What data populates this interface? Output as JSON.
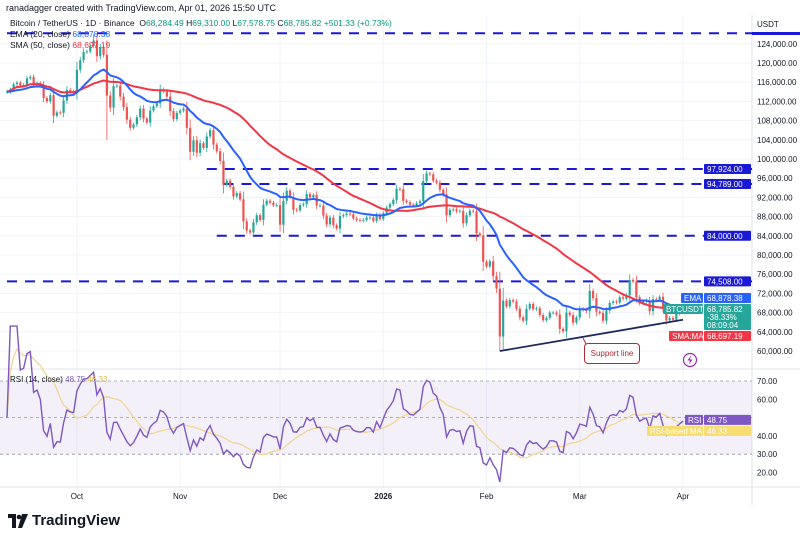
{
  "header": {
    "creator": "ranadagger created with TradingView.com, Apr 01, 2026 15:50 UTC",
    "symbol": "Bitcoin / TetherUS · 1D · Binance",
    "open_label": "O",
    "open": "68,284.49",
    "high_label": "H",
    "high": "69,310.00",
    "low_label": "L",
    "low": "67,578.75",
    "close_label": "C",
    "close": "68,785.82",
    "change": "+501.33 (+0.73%)",
    "ema_label": "EMA (20, close)",
    "ema_value": "68,878.38",
    "sma_label": "SMA (50, close)",
    "sma_value": "68,697.19"
  },
  "price_axis": {
    "currency": "USDT",
    "ticks": [
      124000,
      120000,
      116000,
      112000,
      108000,
      104000,
      100000,
      96000,
      92000,
      88000,
      84000,
      80000,
      76000,
      72000,
      68000,
      64000,
      60000
    ],
    "tick_labels": [
      "124,000.00",
      "120,000.00",
      "116,000.00",
      "112,000.00",
      "108,000.00",
      "104,000.00",
      "100,000.00",
      "96,000.00",
      "92,000.00",
      "88,000.00",
      "84,000.00",
      "80,000.00",
      "76,000.00",
      "72,000.00",
      "68,000.00",
      "64,000.00",
      "60,000.00"
    ]
  },
  "levels": [
    {
      "price": 126200,
      "label": "",
      "start_date_index": 0
    },
    {
      "price": 97924,
      "label": "97,924.00",
      "start_date_index": 60
    },
    {
      "price": 94789,
      "label": "94,789.00",
      "start_date_index": 65
    },
    {
      "price": 84000,
      "label": "84,000.00",
      "start_date_index": 63
    },
    {
      "price": 74508,
      "label": "74,508.00",
      "start_date_index": 0
    }
  ],
  "price_tags": {
    "ema": {
      "name": "EMA",
      "value": "68,878.38"
    },
    "last": {
      "name": "BTCUSDT",
      "value": "68,785.82",
      "change": "-38.33%",
      "countdown": "08:09:04"
    },
    "sma": {
      "name": "SMA:MA",
      "value": "68,697.19"
    }
  },
  "annotation": {
    "text": "Support line",
    "line_start": {
      "date_index": 148,
      "price": 60000
    },
    "line_end": {
      "date_index": 203,
      "price": 66500
    }
  },
  "rsi": {
    "legend": "RSI (14, close)",
    "value": "48.75",
    "ma_value": "46.33",
    "tag_rsi": "RSI",
    "tag_ma": "RSI-based MA",
    "ticks": [
      70,
      60,
      40,
      30,
      20
    ],
    "tick_labels": [
      "70.00",
      "60.00",
      "40.00",
      "30.00",
      "20.00"
    ],
    "upper_band": 70,
    "lower_band": 30
  },
  "time_axis": {
    "labels": [
      {
        "text": "Oct",
        "date_index": 21
      },
      {
        "text": "Nov",
        "date_index": 52
      },
      {
        "text": "Dec",
        "date_index": 82
      },
      {
        "text": "2026",
        "date_index": 113
      },
      {
        "text": "Feb",
        "date_index": 144
      },
      {
        "text": "Mar",
        "date_index": 172
      },
      {
        "text": "Apr",
        "date_index": 203
      }
    ]
  },
  "colors": {
    "up": "#26a69a",
    "down": "#ef5350",
    "ema": "#2962ff",
    "sma": "#f23645",
    "level": "#1a1ad6",
    "rsi": "#7e57c2",
    "rsi_ma": "#f2d48c",
    "support": "#1e2a5a"
  },
  "brand": "TradingView",
  "chart_data": {
    "type": "candlestick",
    "title": "Bitcoin / TetherUS · 1D · Binance",
    "start_date": "2025-09-10",
    "end_date": "2026-04-01",
    "unit": "USDT (thousands)",
    "ylim": [
      56000,
      128000
    ],
    "grid": true,
    "close": [
      114.0,
      114.5,
      115.6,
      115.9,
      115.3,
      115.4,
      116.8,
      117.1,
      115.6,
      115.8,
      115.3,
      112.7,
      112.0,
      113.3,
      109.0,
      109.7,
      109.6,
      112.2,
      114.4,
      114.1,
      114.0,
      118.6,
      120.6,
      122.3,
      122.4,
      123.5,
      124.7,
      121.4,
      123.3,
      121.7,
      113.2,
      110.7,
      115.2,
      115.3,
      113.0,
      110.8,
      108.2,
      106.5,
      107.2,
      108.7,
      110.5,
      108.4,
      107.6,
      110.1,
      111.0,
      111.6,
      114.5,
      114.1,
      113.0,
      110.0,
      108.3,
      109.6,
      110.1,
      110.5,
      106.5,
      101.5,
      103.9,
      101.3,
      103.3,
      102.3,
      104.7,
      106.0,
      103.0,
      101.6,
      99.6,
      94.6,
      95.5,
      94.2,
      92.2,
      92.9,
      91.6,
      87.0,
      85.1,
      84.7,
      86.8,
      88.3,
      87.3,
      90.5,
      91.3,
      90.9,
      90.4,
      90.4,
      86.3,
      91.3,
      93.4,
      92.1,
      89.4,
      89.3,
      90.4,
      90.6,
      92.7,
      92.0,
      92.5,
      90.3,
      90.3,
      88.2,
      86.4,
      87.8,
      86.2,
      85.5,
      88.1,
      88.3,
      88.6,
      88.5,
      87.6,
      87.3,
      87.2,
      87.3,
      87.8,
      87.8,
      87.1,
      88.4,
      87.5,
      88.7,
      89.9,
      90.6,
      91.5,
      93.8,
      93.7,
      91.3,
      91.0,
      90.5,
      90.4,
      90.8,
      91.2,
      95.4,
      97.0,
      96.8,
      95.5,
      95.1,
      93.6,
      92.6,
      88.3,
      89.4,
      89.5,
      89.1,
      89.2,
      86.6,
      88.3,
      89.2,
      89.1,
      84.5,
      84.1,
      78.6,
      77.6,
      78.7,
      75.6,
      73.0,
      63.0,
      70.5,
      69.3,
      70.6,
      70.3,
      68.8,
      67.0,
      66.3,
      68.8,
      69.8,
      68.7,
      68.9,
      67.5,
      66.4,
      66.9,
      68.0,
      68.0,
      67.6,
      64.6,
      64.1,
      68.0,
      67.5,
      65.9,
      67.0,
      68.8,
      68.6,
      68.3,
      72.5,
      71.0,
      68.2,
      67.9,
      66.3,
      68.4,
      70.0,
      70.3,
      70.1,
      71.2,
      70.9,
      71.6,
      74.8,
      74.5,
      71.2,
      69.9,
      70.3,
      70.5,
      68.3,
      70.8,
      70.6,
      71.3,
      68.9,
      66.4,
      66.9,
      66.5,
      67.8,
      68.3,
      68.8
    ],
    "indicators": [
      "EMA 20",
      "SMA 50",
      "RSI 14",
      "RSI-based MA 14"
    ]
  }
}
